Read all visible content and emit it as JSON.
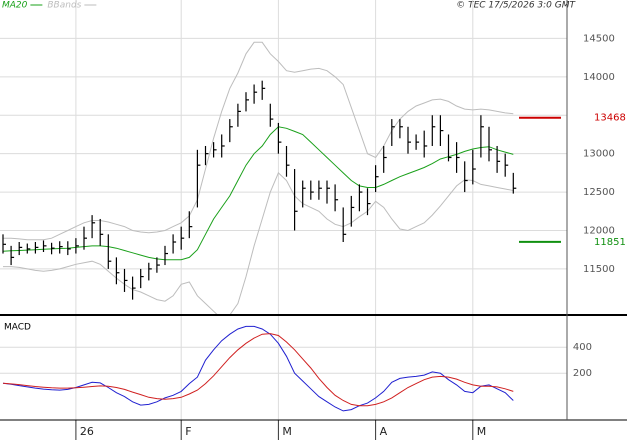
{
  "header": {
    "copyright": "© TEC 17/5/2026 3:0 GMT"
  },
  "chart_data": [
    {
      "type": "ohlc",
      "categories": [
        null,
        null,
        null,
        null,
        null,
        null,
        null,
        null,
        null,
        "26",
        null,
        null,
        null,
        null,
        null,
        null,
        null,
        null,
        null,
        null,
        null,
        null,
        "F",
        null,
        null,
        null,
        null,
        null,
        null,
        null,
        null,
        null,
        null,
        null,
        "M",
        null,
        null,
        null,
        null,
        null,
        null,
        null,
        null,
        null,
        null,
        null,
        "A",
        null,
        null,
        null,
        null,
        null,
        null,
        null,
        null,
        null,
        null,
        null,
        "M",
        null,
        null,
        null,
        null,
        null
      ],
      "high": [
        11950,
        11800,
        11850,
        11830,
        11850,
        11870,
        11840,
        11860,
        11860,
        11900,
        12050,
        12200,
        12150,
        11950,
        11650,
        11500,
        11400,
        11500,
        11580,
        11650,
        11800,
        11950,
        12050,
        12250,
        13050,
        13100,
        13150,
        13250,
        13450,
        13650,
        13800,
        13900,
        13950,
        13650,
        13400,
        13100,
        12800,
        12650,
        12650,
        12650,
        12650,
        12600,
        12300,
        12450,
        12600,
        12550,
        12850,
        13100,
        13450,
        13450,
        13350,
        13250,
        13300,
        13500,
        13500,
        13250,
        13150,
        12900,
        13050,
        13500,
        13350,
        13100,
        13000,
        12750
      ],
      "low": [
        11700,
        11550,
        11680,
        11700,
        11700,
        11720,
        11690,
        11700,
        11680,
        11700,
        11750,
        11900,
        11800,
        11500,
        11300,
        11200,
        11100,
        11250,
        11350,
        11450,
        11550,
        11700,
        11750,
        11900,
        12300,
        12850,
        12950,
        12950,
        13150,
        13350,
        13550,
        13650,
        13700,
        13350,
        13000,
        12700,
        12000,
        12300,
        12400,
        12400,
        12350,
        12250,
        11850,
        12050,
        12250,
        12200,
        12500,
        12750,
        13100,
        13200,
        13000,
        13050,
        12950,
        13100,
        13100,
        12900,
        12750,
        12500,
        12600,
        12950,
        12900,
        12750,
        12700,
        12480
      ],
      "close": [
        11820,
        11650,
        11780,
        11760,
        11780,
        11800,
        11770,
        11790,
        11760,
        11800,
        11900,
        12100,
        11950,
        11600,
        11450,
        11350,
        11250,
        11400,
        11500,
        11550,
        11700,
        11850,
        11900,
        12050,
        12850,
        13000,
        13050,
        13100,
        13350,
        13550,
        13700,
        13800,
        13850,
        13450,
        13150,
        12850,
        12250,
        12550,
        12500,
        12550,
        12550,
        12400,
        11950,
        12300,
        12500,
        12350,
        12700,
        12950,
        13350,
        13350,
        13150,
        13150,
        13100,
        13350,
        13300,
        12950,
        12950,
        12650,
        12800,
        13350,
        13050,
        12900,
        12850,
        12550
      ],
      "series": [
        {
          "name": "MA20",
          "color": "#1aa01a",
          "values": [
            11730,
            11735,
            11740,
            11745,
            11750,
            11755,
            11760,
            11765,
            11770,
            11780,
            11790,
            11800,
            11800,
            11790,
            11770,
            11740,
            11710,
            11680,
            11650,
            11630,
            11620,
            11620,
            11620,
            11650,
            11750,
            11950,
            12150,
            12300,
            12450,
            12650,
            12850,
            13000,
            13100,
            13250,
            13350,
            13330,
            13290,
            13250,
            13150,
            13050,
            12950,
            12850,
            12750,
            12650,
            12580,
            12560,
            12560,
            12600,
            12650,
            12700,
            12740,
            12780,
            12820,
            12870,
            12930,
            12960,
            12990,
            13030,
            13060,
            13080,
            13090,
            13050,
            13020,
            12990
          ]
        },
        {
          "name": "BBands",
          "color": "#bdbdbd",
          "upper": [
            11900,
            11900,
            11890,
            11880,
            11880,
            11880,
            11900,
            11950,
            12000,
            12050,
            12100,
            12130,
            12130,
            12110,
            12080,
            12050,
            12000,
            11980,
            11970,
            11980,
            12000,
            12050,
            12100,
            12190,
            12400,
            12800,
            13200,
            13550,
            13850,
            14050,
            14300,
            14450,
            14450,
            14300,
            14200,
            14080,
            14060,
            14080,
            14100,
            14110,
            14080,
            14000,
            13900,
            13600,
            13300,
            13000,
            12950,
            13100,
            13300,
            13450,
            13550,
            13620,
            13660,
            13700,
            13710,
            13680,
            13620,
            13580,
            13570,
            13580,
            13570,
            13550,
            13530,
            13520
          ],
          "lower": [
            11530,
            11530,
            11520,
            11500,
            11480,
            11470,
            11480,
            11500,
            11530,
            11560,
            11580,
            11600,
            11560,
            11470,
            11380,
            11300,
            11230,
            11200,
            11150,
            11100,
            11080,
            11150,
            11300,
            11330,
            11150,
            11050,
            10950,
            10850,
            10900,
            11050,
            11400,
            11800,
            12150,
            12500,
            12750,
            12650,
            12450,
            12350,
            12300,
            12250,
            12150,
            12080,
            12050,
            12100,
            12180,
            12250,
            12380,
            12300,
            12150,
            12020,
            12000,
            12050,
            12100,
            12200,
            12320,
            12450,
            12580,
            12660,
            12650,
            12600,
            12580,
            12560,
            12540,
            12520
          ]
        }
      ],
      "markers": [
        {
          "value": 13468,
          "label": "13468",
          "color": "#cc0000"
        },
        {
          "value": 11851,
          "label": "11851",
          "color": "#109010"
        }
      ],
      "ylim": [
        10900,
        15000
      ],
      "yticks": [
        11500,
        12000,
        12500,
        13000,
        13500,
        14000,
        14500
      ],
      "grid": true
    },
    {
      "type": "line",
      "title": "MACD",
      "series": [
        {
          "color": "#2020d0",
          "values": [
            123,
            115,
            105,
            95,
            85,
            78,
            72,
            70,
            75,
            90,
            110,
            130,
            125,
            90,
            50,
            20,
            -20,
            -45,
            -40,
            -20,
            10,
            30,
            60,
            120,
            170,
            300,
            380,
            450,
            500,
            540,
            560,
            560,
            540,
            500,
            430,
            330,
            200,
            140,
            80,
            20,
            -20,
            -60,
            -90,
            -80,
            -50,
            -30,
            10,
            60,
            130,
            160,
            170,
            175,
            185,
            210,
            200,
            150,
            110,
            60,
            50,
            100,
            110,
            80,
            50,
            -10
          ]
        },
        {
          "color": "#d02020",
          "values": [
            123,
            118,
            112,
            105,
            98,
            92,
            88,
            85,
            85,
            88,
            92,
            98,
            102,
            100,
            90,
            75,
            55,
            35,
            15,
            5,
            0,
            5,
            15,
            40,
            70,
            120,
            180,
            250,
            320,
            380,
            430,
            470,
            500,
            505,
            490,
            440,
            380,
            310,
            240,
            160,
            90,
            30,
            -10,
            -40,
            -50,
            -50,
            -40,
            -20,
            10,
            50,
            90,
            120,
            150,
            170,
            175,
            170,
            155,
            130,
            110,
            100,
            100,
            95,
            80,
            60
          ]
        }
      ],
      "ylim": [
        -160,
        640
      ],
      "yticks": [
        200,
        400
      ],
      "grid": true
    }
  ]
}
